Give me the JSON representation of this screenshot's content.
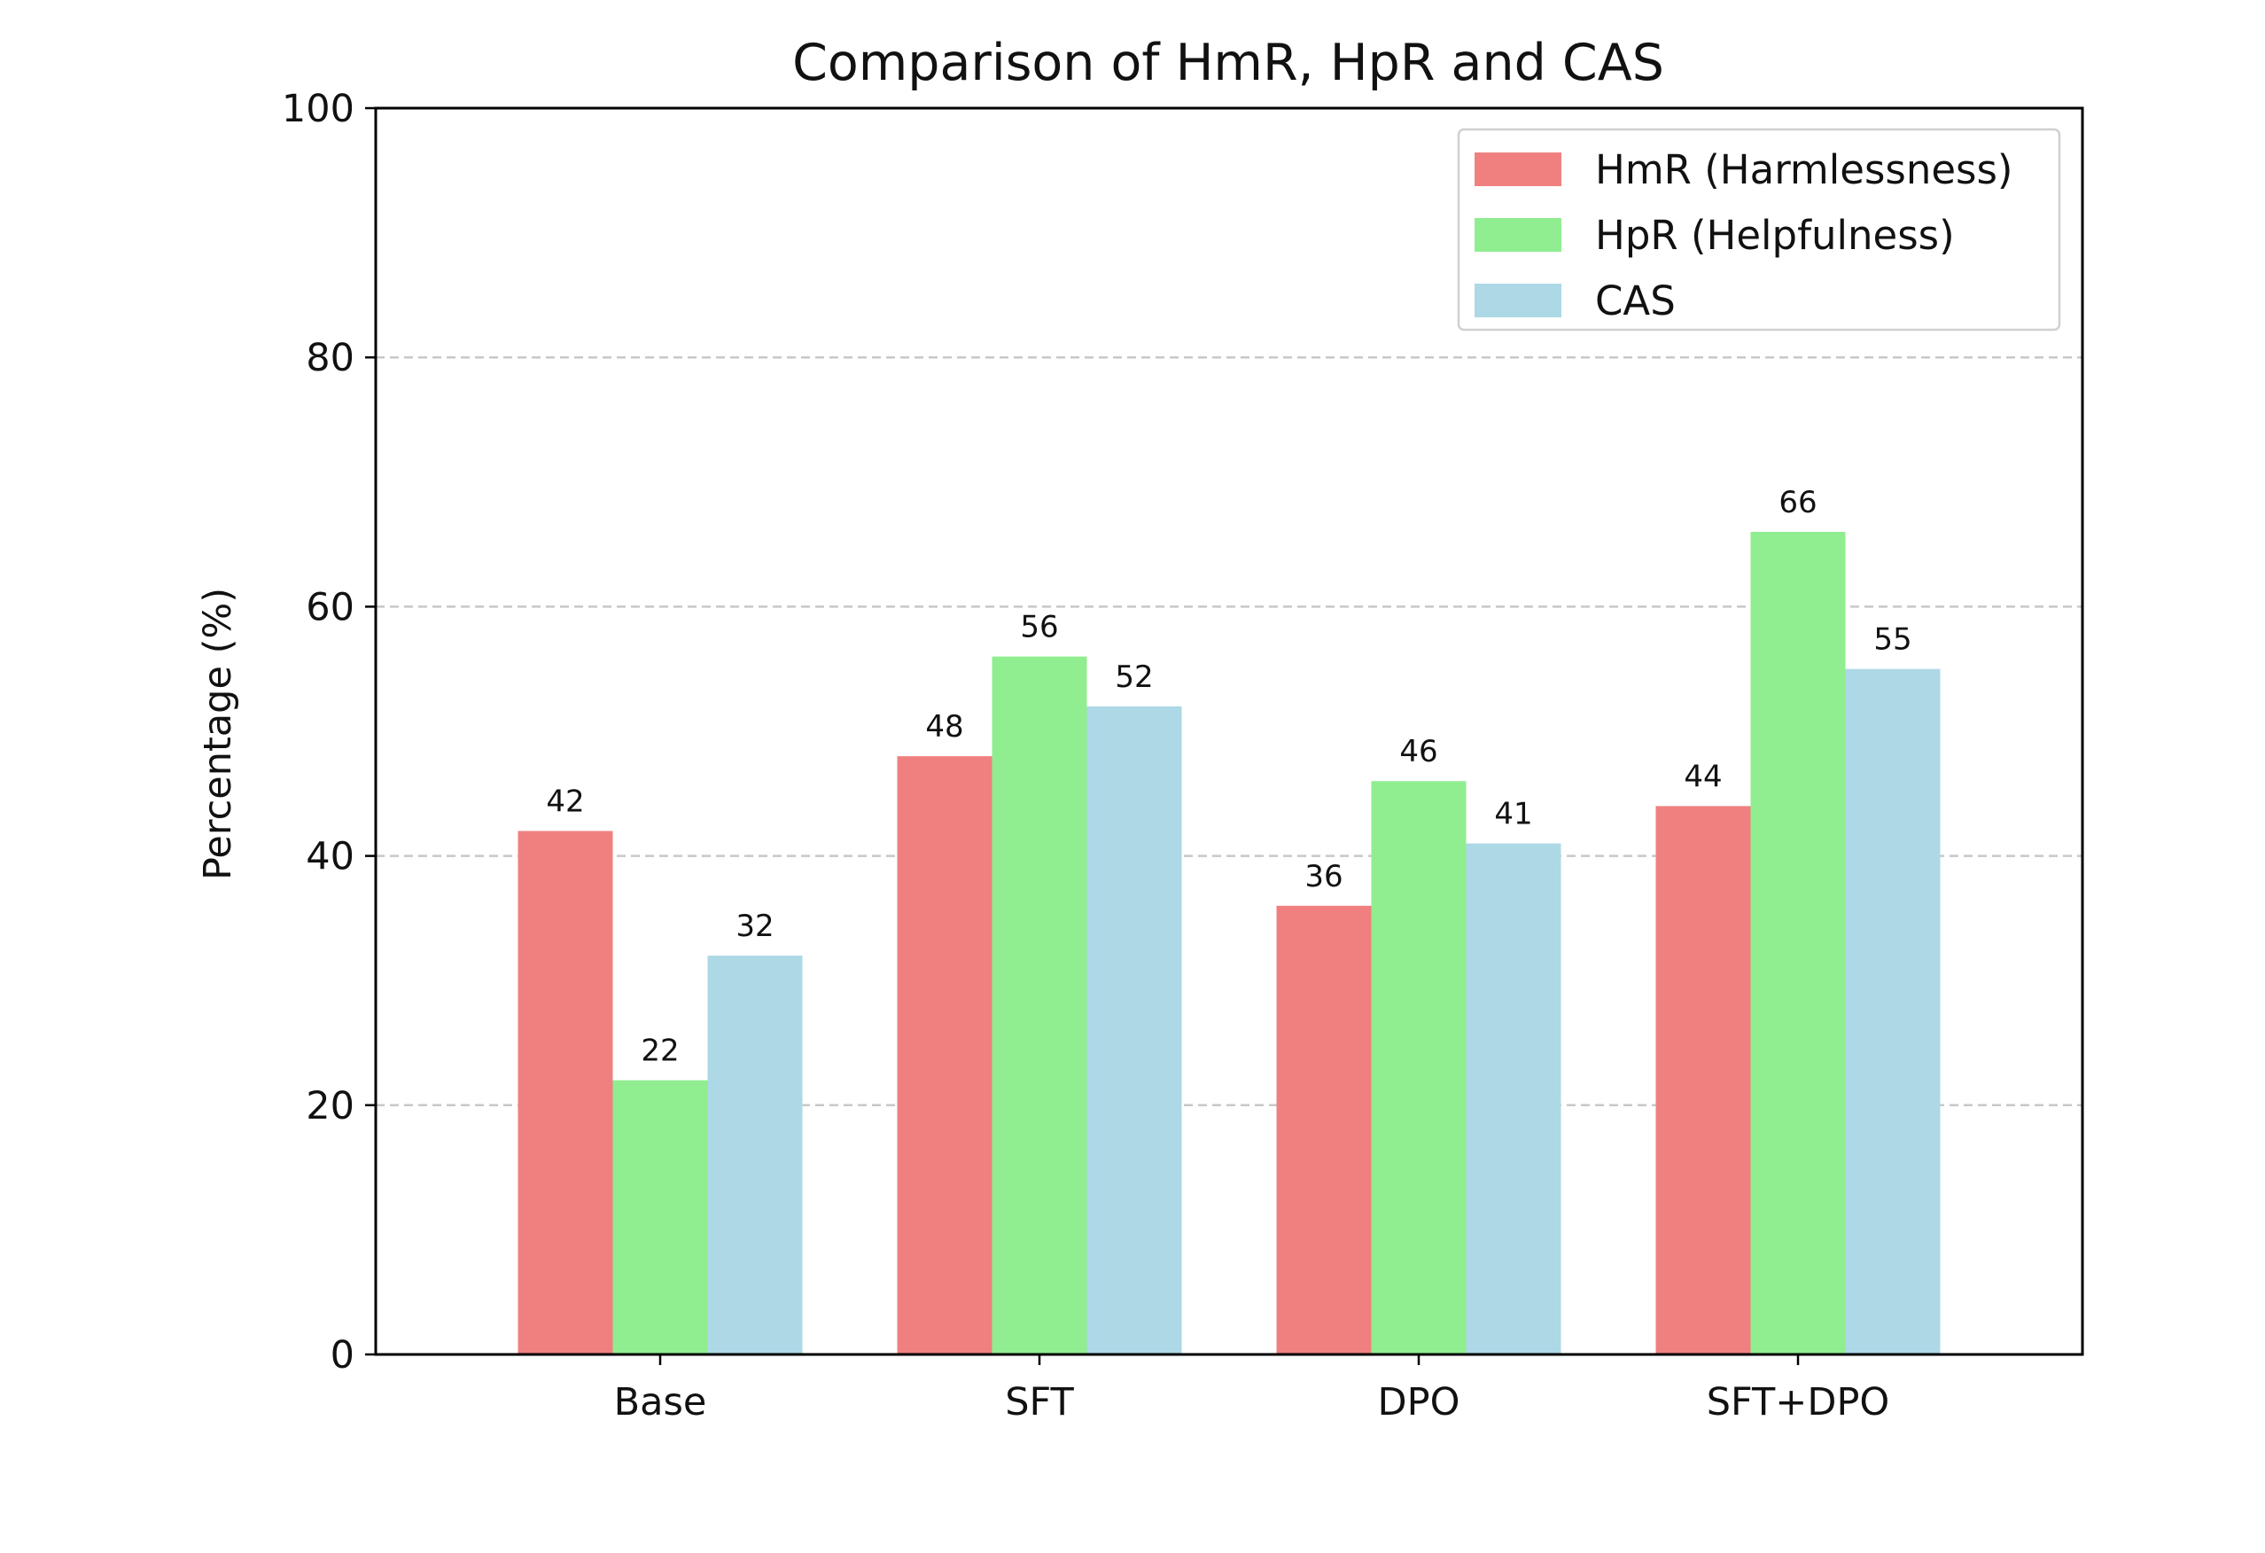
{
  "chart_data": {
    "type": "bar",
    "title": "Comparison of HmR, HpR and CAS",
    "xlabel": "",
    "ylabel": "Percentage (%)",
    "ylim": [
      0,
      100
    ],
    "yticks": [
      0,
      20,
      40,
      60,
      80,
      100
    ],
    "categories": [
      "Base",
      "SFT",
      "DPO",
      "SFT+DPO"
    ],
    "series": [
      {
        "name": "HmR (Harmlessness)",
        "color": "#f08080",
        "values": [
          42,
          48,
          36,
          44
        ]
      },
      {
        "name": "HpR (Helpfulness)",
        "color": "#90ee90",
        "values": [
          22,
          56,
          46,
          66
        ]
      },
      {
        "name": "CAS",
        "color": "#add8e6",
        "values": [
          32,
          52,
          41,
          55
        ]
      }
    ],
    "grid": "horizontal dashed",
    "legend_position": "top-right",
    "data_labels": true
  }
}
